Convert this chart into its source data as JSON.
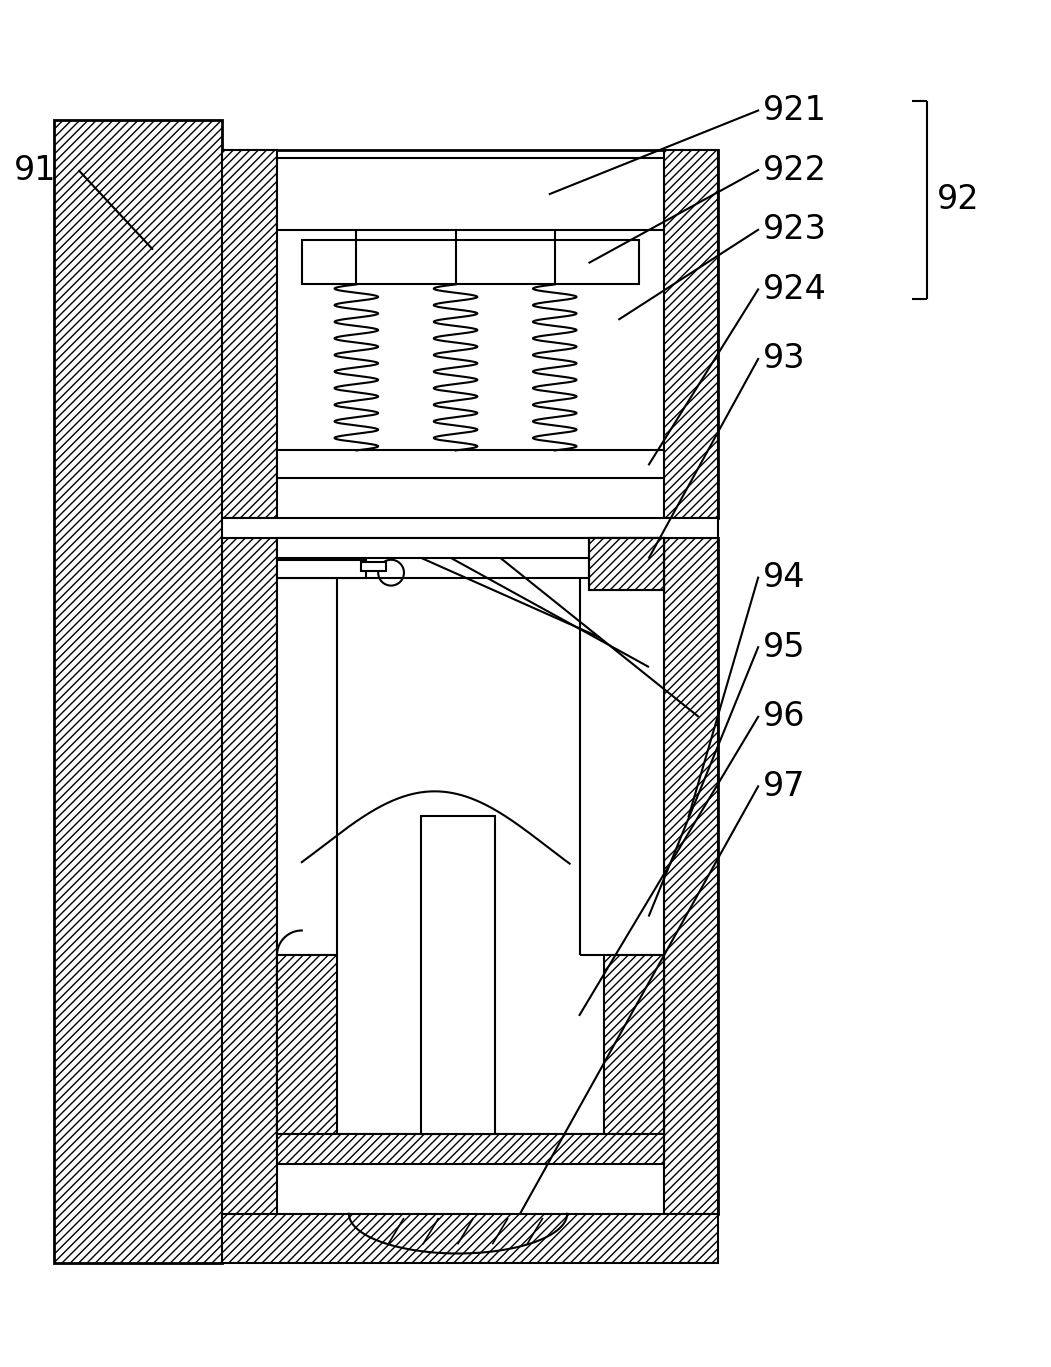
{
  "bg_color": "#ffffff",
  "lw": 1.5,
  "lw2": 2.0,
  "hatch": "////",
  "label_fs": 24,
  "figsize": [
    10.51,
    13.67
  ],
  "dpi": 100
}
